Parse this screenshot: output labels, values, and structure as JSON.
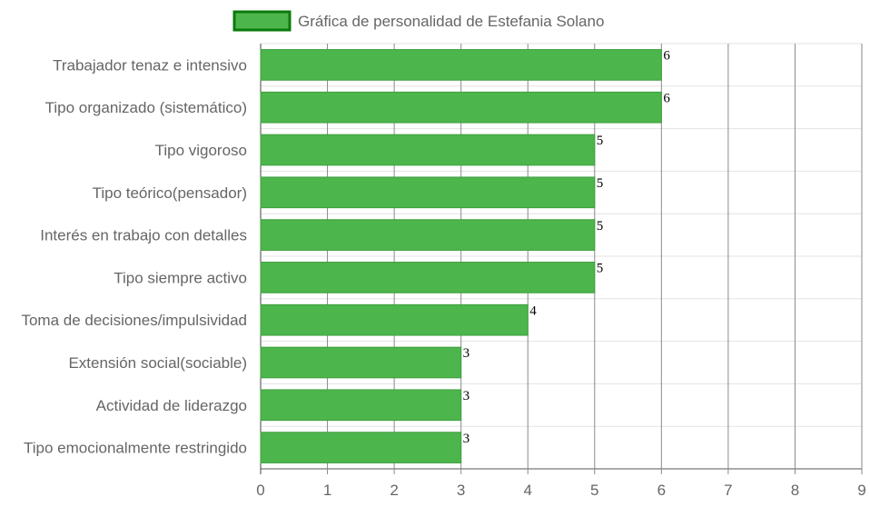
{
  "chart_data": {
    "type": "bar",
    "orientation": "horizontal",
    "title": "",
    "xlabel": "",
    "ylabel": "",
    "xlim": [
      0,
      9
    ],
    "x_ticks": [
      0,
      1,
      2,
      3,
      4,
      5,
      6,
      7,
      8,
      9
    ],
    "grid": true,
    "legend_position": "top",
    "categories": [
      "Trabajador tenaz e intensivo",
      "Tipo organizado (sistemático)",
      "Tipo vigoroso",
      "Tipo teórico(pensador)",
      "Interés en trabajo con detalles",
      "Tipo siempre activo",
      "Toma de decisiones/impulsividad",
      "Extensión social(sociable)",
      "Actividad de liderazgo",
      "Tipo emocionalmente restringido"
    ],
    "series": [
      {
        "name": "Gráfica de personalidad de Estefania Solano",
        "values": [
          6,
          6,
          5,
          5,
          5,
          5,
          4,
          3,
          3,
          3
        ],
        "color": "#4cb54c",
        "border_color": "#0b7a0b"
      }
    ],
    "data_labels": [
      "6",
      "6",
      "5",
      "5",
      "5",
      "5",
      "4",
      "3",
      "3",
      "3"
    ]
  }
}
